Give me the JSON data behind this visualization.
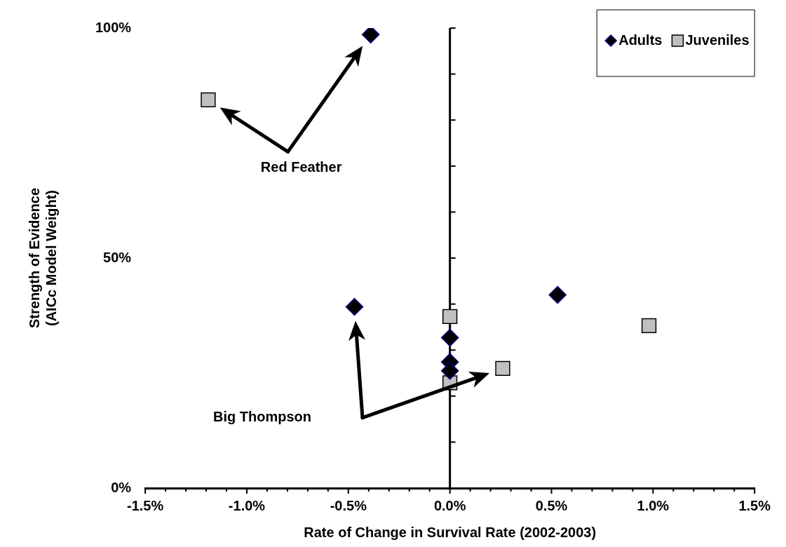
{
  "chart_data": {
    "type": "scatter",
    "xlabel": "Rate of Change in Survival Rate (2002-2003)",
    "ylabel": "Strength of Evidence\n(AICc Model Weight)",
    "series": [
      {
        "name": "Adults",
        "color": "#000000",
        "marker": "diamond",
        "x": [
          -0.39,
          -0.47,
          0.0,
          0.0,
          0.0,
          0.53
        ],
        "values": [
          98.6,
          39.4,
          32.7,
          27.4,
          25.5,
          42.0
        ]
      },
      {
        "name": "Juveniles",
        "color": "#c0c0c0",
        "marker": "square",
        "x": [
          -1.19,
          0.0,
          0.0,
          0.26,
          0.98
        ],
        "values": [
          84.4,
          37.3,
          22.9,
          26.0,
          35.3
        ]
      }
    ],
    "xlim": [
      -1.5,
      1.5
    ],
    "xticks": [
      {
        "value": -1.5,
        "label": "-1.5%"
      },
      {
        "value": -1.4,
        "label": null
      },
      {
        "value": -1.3,
        "label": null
      },
      {
        "value": -1.2,
        "label": null
      },
      {
        "value": -1.1,
        "label": null
      },
      {
        "value": -1.0,
        "label": "-1.0%"
      },
      {
        "value": -0.9,
        "label": null
      },
      {
        "value": -0.8,
        "label": null
      },
      {
        "value": -0.7,
        "label": null
      },
      {
        "value": -0.6,
        "label": null
      },
      {
        "value": -0.5,
        "label": "-0.5%"
      },
      {
        "value": -0.4,
        "label": null
      },
      {
        "value": -0.3,
        "label": null
      },
      {
        "value": -0.2,
        "label": null
      },
      {
        "value": -0.1,
        "label": null
      },
      {
        "value": 0.0,
        "label": "0.0%"
      },
      {
        "value": 0.1,
        "label": null
      },
      {
        "value": 0.2,
        "label": null
      },
      {
        "value": 0.3,
        "label": null
      },
      {
        "value": 0.4,
        "label": null
      },
      {
        "value": 0.5,
        "label": "0.5%"
      },
      {
        "value": 0.6,
        "label": null
      },
      {
        "value": 0.7,
        "label": null
      },
      {
        "value": 0.8,
        "label": null
      },
      {
        "value": 0.9,
        "label": null
      },
      {
        "value": 1.0,
        "label": "1.0%"
      },
      {
        "value": 1.1,
        "label": null
      },
      {
        "value": 1.2,
        "label": null
      },
      {
        "value": 1.3,
        "label": null
      },
      {
        "value": 1.4,
        "label": null
      },
      {
        "value": 1.5,
        "label": "1.5%"
      }
    ],
    "ylim": [
      0,
      100
    ],
    "yticks": [
      {
        "value": 0,
        "label": "0%"
      },
      {
        "value": 10,
        "label": null
      },
      {
        "value": 20,
        "label": null
      },
      {
        "value": 30,
        "label": null
      },
      {
        "value": 40,
        "label": null
      },
      {
        "value": 50,
        "label": "50%"
      },
      {
        "value": 60,
        "label": null
      },
      {
        "value": 70,
        "label": null
      },
      {
        "value": 80,
        "label": null
      },
      {
        "value": 90,
        "label": null
      },
      {
        "value": 100,
        "label": "100%"
      }
    ],
    "annotations": [
      "Red Feather",
      "Big Thompson"
    ],
    "ref_lines": [
      {
        "axis": "x",
        "value": 0,
        "color": "#000000"
      }
    ],
    "grid": false,
    "legend": "top right"
  }
}
